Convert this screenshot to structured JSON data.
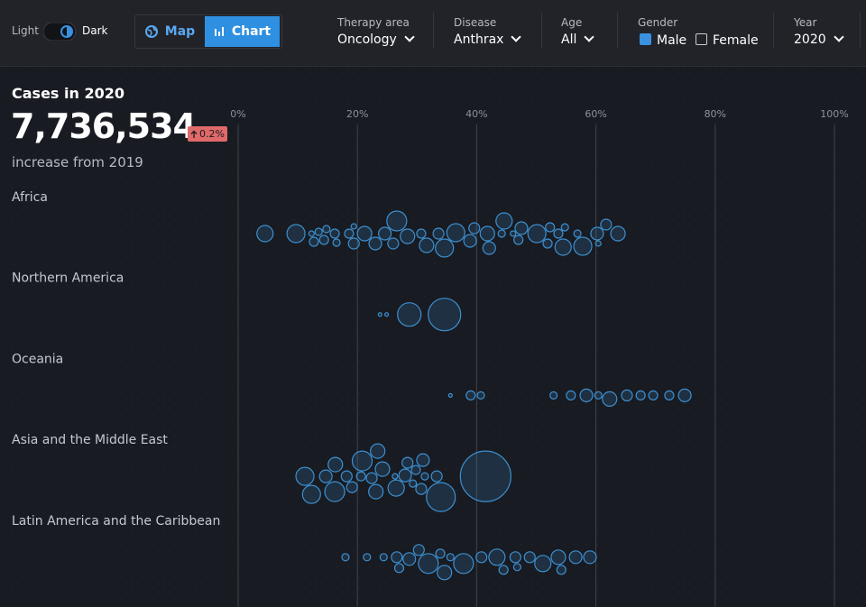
{
  "toolbar": {
    "theme_light": "Light",
    "theme_dark": "Dark",
    "views": [
      "Map",
      "Chart"
    ],
    "active_view": 1,
    "filters": [
      {
        "label": "Therapy area",
        "value": "Oncology"
      },
      {
        "label": "Disease",
        "value": "Anthrax"
      },
      {
        "label": "Age",
        "value": "All"
      }
    ],
    "gender": {
      "label": "Gender",
      "options": [
        {
          "label": "Male",
          "checked": true
        },
        {
          "label": "Female",
          "checked": false
        }
      ]
    },
    "year": {
      "label": "Year",
      "value": "2020"
    }
  },
  "kpi": {
    "title": "Cases in 2020",
    "value": "7,736,534",
    "change": "0.2%",
    "caption": "increase from 2019"
  },
  "chart_data": {
    "type": "beeswarm",
    "color": "#3d8fd1",
    "xlim": [
      0,
      100
    ],
    "xticks": [
      {
        "value": 0,
        "label": "0%"
      },
      {
        "value": 20,
        "label": "20%"
      },
      {
        "value": 40,
        "label": "40%"
      },
      {
        "value": 60,
        "label": "60%"
      },
      {
        "value": 80,
        "label": "80%"
      },
      {
        "value": 100,
        "label": "100%"
      }
    ],
    "series": [
      {
        "name": "Africa",
        "values": [
          4.5,
          9.7,
          12.3,
          12.7,
          13.5,
          14.4,
          14.8,
          16.2,
          16.5,
          18.6,
          19.4,
          19.4,
          21.2,
          23,
          24.6,
          26,
          26.6,
          28.4,
          30.7,
          31.6,
          33.6,
          34.6,
          36.5,
          38.9,
          39.6,
          41.8,
          42.1,
          44.2,
          44.6,
          46.1,
          47,
          47.5,
          50.1,
          51.9,
          52.3,
          53.7,
          54.5,
          54.8,
          56.9,
          57.8,
          60.2,
          60.4,
          61.7,
          63.7
        ],
        "sizes": [
          9,
          10,
          3,
          5,
          4,
          5,
          4,
          5,
          4,
          5,
          6,
          3,
          8,
          7,
          7,
          6,
          11,
          8,
          5,
          8,
          6,
          10,
          10,
          7,
          6,
          8,
          7,
          4,
          9,
          3,
          5,
          7,
          10,
          5,
          5,
          5,
          9,
          4,
          4,
          10,
          7,
          3,
          6,
          8
        ]
      },
      {
        "name": "Northern America",
        "values": [
          23.8,
          24.9,
          28.7,
          34.6
        ],
        "sizes": [
          2,
          2,
          13,
          18
        ]
      },
      {
        "name": "Oceania",
        "values": [
          35.6,
          39,
          40.7,
          52.9,
          55.8,
          58.4,
          60.4,
          62.3,
          65.2,
          67.5,
          69.6,
          72.3,
          74.9
        ],
        "sizes": [
          2,
          5,
          4,
          4,
          5,
          7,
          4,
          8,
          6,
          5,
          5,
          5,
          7
        ]
      },
      {
        "name": "Asia and the Middle East",
        "values": [
          11.2,
          12.3,
          14.7,
          16.2,
          16.3,
          18.2,
          19.1,
          20.6,
          20.8,
          22.4,
          23.1,
          23.4,
          24.2,
          26.3,
          26.5,
          28,
          28.4,
          29.3,
          29.8,
          30.7,
          31,
          31.3,
          33.3,
          34,
          41.5
        ],
        "sizes": [
          10,
          10,
          7,
          11,
          8,
          6,
          6,
          5,
          11,
          6,
          8,
          8,
          8,
          3,
          9,
          7,
          6,
          4,
          5,
          6,
          7,
          4,
          6,
          16,
          28
        ]
      },
      {
        "name": "Latin America and the Caribbean",
        "values": [
          18,
          21.6,
          24.4,
          26.6,
          27,
          28.7,
          30.3,
          31.9,
          33.9,
          34.6,
          35.6,
          37.8,
          40.8,
          43.4,
          44.5,
          46.5,
          46.8,
          48.9,
          51.1,
          53.7,
          54.2,
          56.6,
          59
        ],
        "sizes": [
          4,
          4,
          4,
          6,
          5,
          7,
          6,
          11,
          5,
          8,
          4,
          11,
          6,
          9,
          5,
          6,
          4,
          6,
          9,
          8,
          5,
          7,
          7
        ]
      }
    ]
  }
}
